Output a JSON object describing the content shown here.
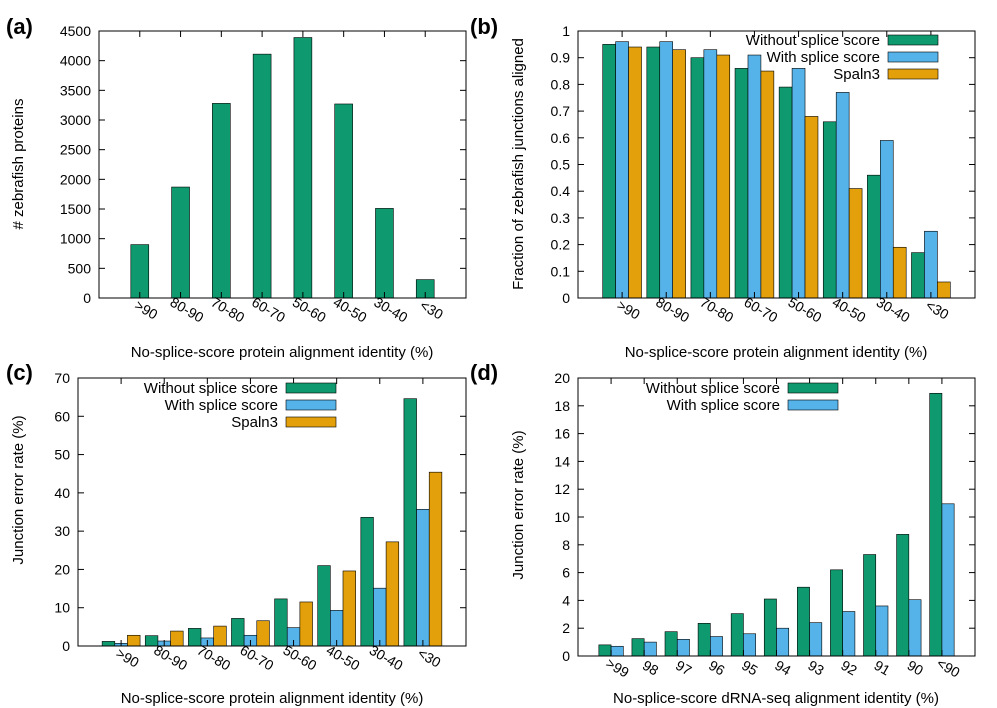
{
  "colors": {
    "green": "#0E9A6E",
    "blue": "#56B3E9",
    "orange": "#E3A00B",
    "edge": "#000000"
  },
  "chart_data": [
    {
      "panel": "(a)",
      "type": "bar",
      "xlabel": "No-splice-score protein alignment identity (%)",
      "ylabel": "# zebrafish proteins",
      "ylim": [
        0,
        4500
      ],
      "yticks": [
        "0",
        "500",
        "1000",
        "1500",
        "2000",
        "2500",
        "3000",
        "3500",
        "4000",
        "4500"
      ],
      "ytick_values": [
        0,
        500,
        1000,
        1500,
        2000,
        2500,
        3000,
        3500,
        4000,
        4500
      ],
      "categories": [
        ">90",
        "80-90",
        "70-80",
        "60-70",
        "50-60",
        "40-50",
        "30-40",
        "<30"
      ],
      "series": [
        {
          "name": "",
          "color": "green",
          "values": [
            900,
            1870,
            3280,
            4110,
            4390,
            3270,
            1510,
            310
          ]
        }
      ],
      "legend": []
    },
    {
      "panel": "(b)",
      "type": "bar",
      "xlabel": "No-splice-score protein alignment identity (%)",
      "ylabel": "Fraction of zebrafish junctions aligned",
      "ylim": [
        0,
        1
      ],
      "yticks": [
        "0",
        "0.1",
        "0.2",
        "0.3",
        "0.4",
        "0.5",
        "0.6",
        "0.7",
        "0.8",
        "0.9",
        "1"
      ],
      "ytick_values": [
        0,
        0.1,
        0.2,
        0.3,
        0.4,
        0.5,
        0.6,
        0.7,
        0.8,
        0.9,
        1
      ],
      "categories": [
        ">90",
        "80-90",
        "70-80",
        "60-70",
        "50-60",
        "40-50",
        "30-40",
        "<30"
      ],
      "series": [
        {
          "name": "Without splice score",
          "color": "green",
          "values": [
            0.95,
            0.94,
            0.9,
            0.86,
            0.79,
            0.66,
            0.46,
            0.17
          ]
        },
        {
          "name": "With splice score",
          "color": "blue",
          "values": [
            0.96,
            0.96,
            0.93,
            0.91,
            0.86,
            0.77,
            0.59,
            0.25
          ]
        },
        {
          "name": "Spaln3",
          "color": "orange",
          "values": [
            0.94,
            0.93,
            0.91,
            0.85,
            0.68,
            0.41,
            0.19,
            0.06
          ]
        }
      ],
      "legend": [
        "Without splice score",
        "With splice score",
        "Spaln3"
      ]
    },
    {
      "panel": "(c)",
      "type": "bar",
      "xlabel": "No-splice-score protein alignment identity (%)",
      "ylabel": "Junction error rate (%)",
      "ylim": [
        0,
        70
      ],
      "yticks": [
        "0",
        "10",
        "20",
        "30",
        "40",
        "50",
        "60",
        "70"
      ],
      "ytick_values": [
        0,
        10,
        20,
        30,
        40,
        50,
        60,
        70
      ],
      "categories": [
        ">90",
        "80-90",
        "70-80",
        "60-70",
        "50-60",
        "40-50",
        "30-40",
        "<30"
      ],
      "series": [
        {
          "name": "Without splice score",
          "color": "green",
          "values": [
            1.2,
            2.7,
            4.6,
            7.2,
            12.3,
            21.0,
            33.6,
            64.6
          ]
        },
        {
          "name": "With splice score",
          "color": "blue",
          "values": [
            0.7,
            1.3,
            2.1,
            2.8,
            4.8,
            9.3,
            15.1,
            35.7
          ]
        },
        {
          "name": "Spaln3",
          "color": "orange",
          "values": [
            2.8,
            3.9,
            5.2,
            6.6,
            11.5,
            19.6,
            27.2,
            45.4
          ]
        }
      ],
      "legend": [
        "Without splice score",
        "With splice score",
        "Spaln3"
      ]
    },
    {
      "panel": "(d)",
      "type": "bar",
      "xlabel": "No-splice-score dRNA-seq alignment identity (%)",
      "ylabel": "Junction error rate (%)",
      "ylim": [
        0,
        20
      ],
      "yticks": [
        "0",
        "2",
        "4",
        "6",
        "8",
        "10",
        "12",
        "14",
        "16",
        "18",
        "20"
      ],
      "ytick_values": [
        0,
        2,
        4,
        6,
        8,
        10,
        12,
        14,
        16,
        18,
        20
      ],
      "categories": [
        ">99",
        "98",
        "97",
        "96",
        "95",
        "94",
        "93",
        "92",
        "91",
        "90",
        "<90"
      ],
      "series": [
        {
          "name": "Without splice score",
          "color": "green",
          "values": [
            0.8,
            1.25,
            1.75,
            2.35,
            3.05,
            4.1,
            4.95,
            6.2,
            7.3,
            8.75,
            18.9
          ]
        },
        {
          "name": "With splice score",
          "color": "blue",
          "values": [
            0.7,
            1.0,
            1.2,
            1.4,
            1.6,
            2.0,
            2.4,
            3.2,
            3.6,
            4.05,
            10.95
          ]
        }
      ],
      "legend": [
        "Without splice score",
        "With splice score"
      ]
    }
  ]
}
